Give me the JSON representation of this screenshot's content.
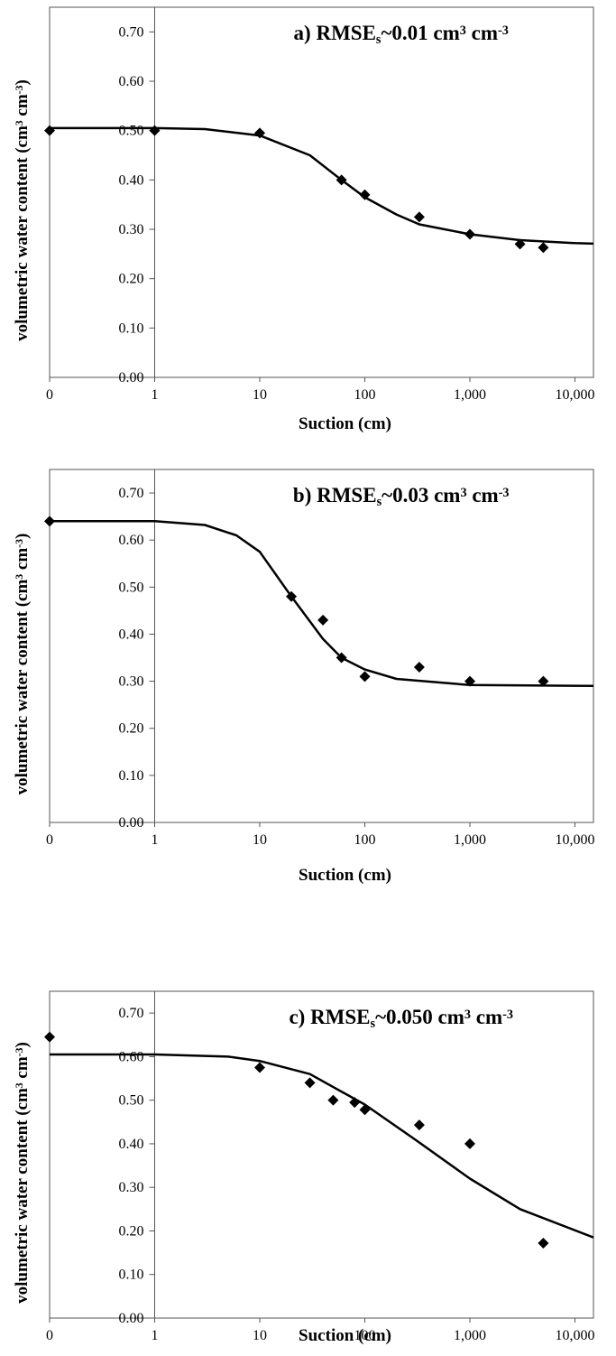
{
  "chart_data": [
    {
      "type": "scatter",
      "title": [
        "a) RMSE",
        {
          "text": "s",
          "script": "sub"
        },
        "~0.01 cm",
        {
          "text": "3",
          "script": "sup"
        },
        " cm",
        {
          "text": "-3",
          "script": "sup"
        }
      ],
      "x_label": "Suction (cm)",
      "y_label": [
        "volumetric water content (cm",
        {
          "text": "3",
          "script": "sup"
        },
        " cm",
        {
          "text": "-3",
          "script": "sup"
        },
        ")"
      ],
      "x_scale": "log",
      "xlim": [
        0,
        15000
      ],
      "ylim": [
        0,
        0.75
      ],
      "xticks": [
        0,
        1,
        10,
        100,
        {
          "value": 1000,
          "label": "1,000"
        },
        {
          "value": 10000,
          "label": "10,000"
        }
      ],
      "yticks": [
        {
          "value": 0,
          "label": "0.00"
        },
        {
          "value": 0.1,
          "label": "0.10"
        },
        {
          "value": 0.2,
          "label": "0.20"
        },
        {
          "value": 0.3,
          "label": "0.30"
        },
        {
          "value": 0.4,
          "label": "0.40"
        },
        {
          "value": 0.5,
          "label": "0.50"
        },
        {
          "value": 0.6,
          "label": "0.60"
        },
        {
          "value": 0.7,
          "label": "0.70"
        }
      ],
      "series": [
        {
          "type": "scatter",
          "color": "#000000",
          "x": [
            0,
            1,
            10,
            60,
            100,
            330,
            1000,
            3000,
            5000
          ],
          "values": [
            0.5,
            0.5,
            0.495,
            0.4,
            0.37,
            0.325,
            0.29,
            0.27,
            0.263
          ]
        },
        {
          "type": "line",
          "color": "#000000",
          "x": [
            0,
            1,
            3,
            10,
            30,
            60,
            100,
            200,
            330,
            1000,
            3000,
            10000,
            15000
          ],
          "values": [
            0.505,
            0.505,
            0.503,
            0.49,
            0.45,
            0.4,
            0.365,
            0.33,
            0.31,
            0.29,
            0.278,
            0.272,
            0.271
          ]
        }
      ]
    },
    {
      "type": "scatter",
      "title": [
        "b) RMSE",
        {
          "text": "s",
          "script": "sub"
        },
        "~0.03 cm",
        {
          "text": "3",
          "script": "sup"
        },
        " cm",
        {
          "text": "-3",
          "script": "sup"
        }
      ],
      "x_label": "Suction (cm)",
      "y_label": [
        "volumetric water content (cm",
        {
          "text": "3",
          "script": "sup"
        },
        " cm",
        {
          "text": "-3",
          "script": "sup"
        },
        ")"
      ],
      "x_scale": "log",
      "xlim": [
        0,
        15000
      ],
      "ylim": [
        0,
        0.75
      ],
      "xticks": [
        0,
        1,
        10,
        100,
        {
          "value": 1000,
          "label": "1,000"
        },
        {
          "value": 10000,
          "label": "10,000"
        }
      ],
      "yticks": [
        {
          "value": 0,
          "label": "0.00"
        },
        {
          "value": 0.1,
          "label": "0.10"
        },
        {
          "value": 0.2,
          "label": "0.20"
        },
        {
          "value": 0.3,
          "label": "0.30"
        },
        {
          "value": 0.4,
          "label": "0.40"
        },
        {
          "value": 0.5,
          "label": "0.50"
        },
        {
          "value": 0.6,
          "label": "0.60"
        },
        {
          "value": 0.7,
          "label": "0.70"
        }
      ],
      "series": [
        {
          "type": "scatter",
          "color": "#000000",
          "x": [
            0,
            20,
            40,
            60,
            100,
            330,
            1000,
            5000
          ],
          "values": [
            0.64,
            0.48,
            0.43,
            0.35,
            0.31,
            0.33,
            0.3,
            0.3
          ]
        },
        {
          "type": "line",
          "color": "#000000",
          "x": [
            0,
            1,
            3,
            6,
            10,
            20,
            40,
            60,
            100,
            200,
            1000,
            15000
          ],
          "values": [
            0.64,
            0.64,
            0.632,
            0.61,
            0.575,
            0.48,
            0.39,
            0.35,
            0.325,
            0.305,
            0.292,
            0.29
          ]
        }
      ]
    },
    {
      "type": "scatter",
      "title": [
        "c) RMSE",
        {
          "text": "s",
          "script": "sub"
        },
        "~0.050 cm",
        {
          "text": "3",
          "script": "sup"
        },
        " cm",
        {
          "text": "-3",
          "script": "sup"
        }
      ],
      "x_label": "Suction (cm)",
      "y_label": [
        "volumetric water content (cm",
        {
          "text": "3",
          "script": "sup"
        },
        " cm",
        {
          "text": "-3",
          "script": "sup"
        },
        ")"
      ],
      "x_scale": "log",
      "xlim": [
        0,
        15000
      ],
      "ylim": [
        0,
        0.75
      ],
      "xticks": [
        0,
        1,
        10,
        100,
        {
          "value": 1000,
          "label": "1,000"
        },
        {
          "value": 10000,
          "label": "10,000"
        }
      ],
      "yticks": [
        {
          "value": 0,
          "label": "0.00"
        },
        {
          "value": 0.1,
          "label": "0.10"
        },
        {
          "value": 0.2,
          "label": "0.20"
        },
        {
          "value": 0.3,
          "label": "0.30"
        },
        {
          "value": 0.4,
          "label": "0.40"
        },
        {
          "value": 0.5,
          "label": "0.50"
        },
        {
          "value": 0.6,
          "label": "0.60"
        },
        {
          "value": 0.7,
          "label": "0.70"
        }
      ],
      "series": [
        {
          "type": "scatter",
          "color": "#000000",
          "x": [
            0,
            10,
            30,
            50,
            80,
            100,
            330,
            1000,
            5000
          ],
          "values": [
            0.645,
            0.575,
            0.54,
            0.5,
            0.495,
            0.478,
            0.443,
            0.4,
            0.172
          ]
        },
        {
          "type": "line",
          "color": "#000000",
          "x": [
            0,
            1,
            5,
            10,
            30,
            100,
            300,
            1000,
            3000,
            15000
          ],
          "values": [
            0.605,
            0.605,
            0.6,
            0.59,
            0.56,
            0.49,
            0.41,
            0.32,
            0.25,
            0.185
          ]
        }
      ]
    }
  ]
}
